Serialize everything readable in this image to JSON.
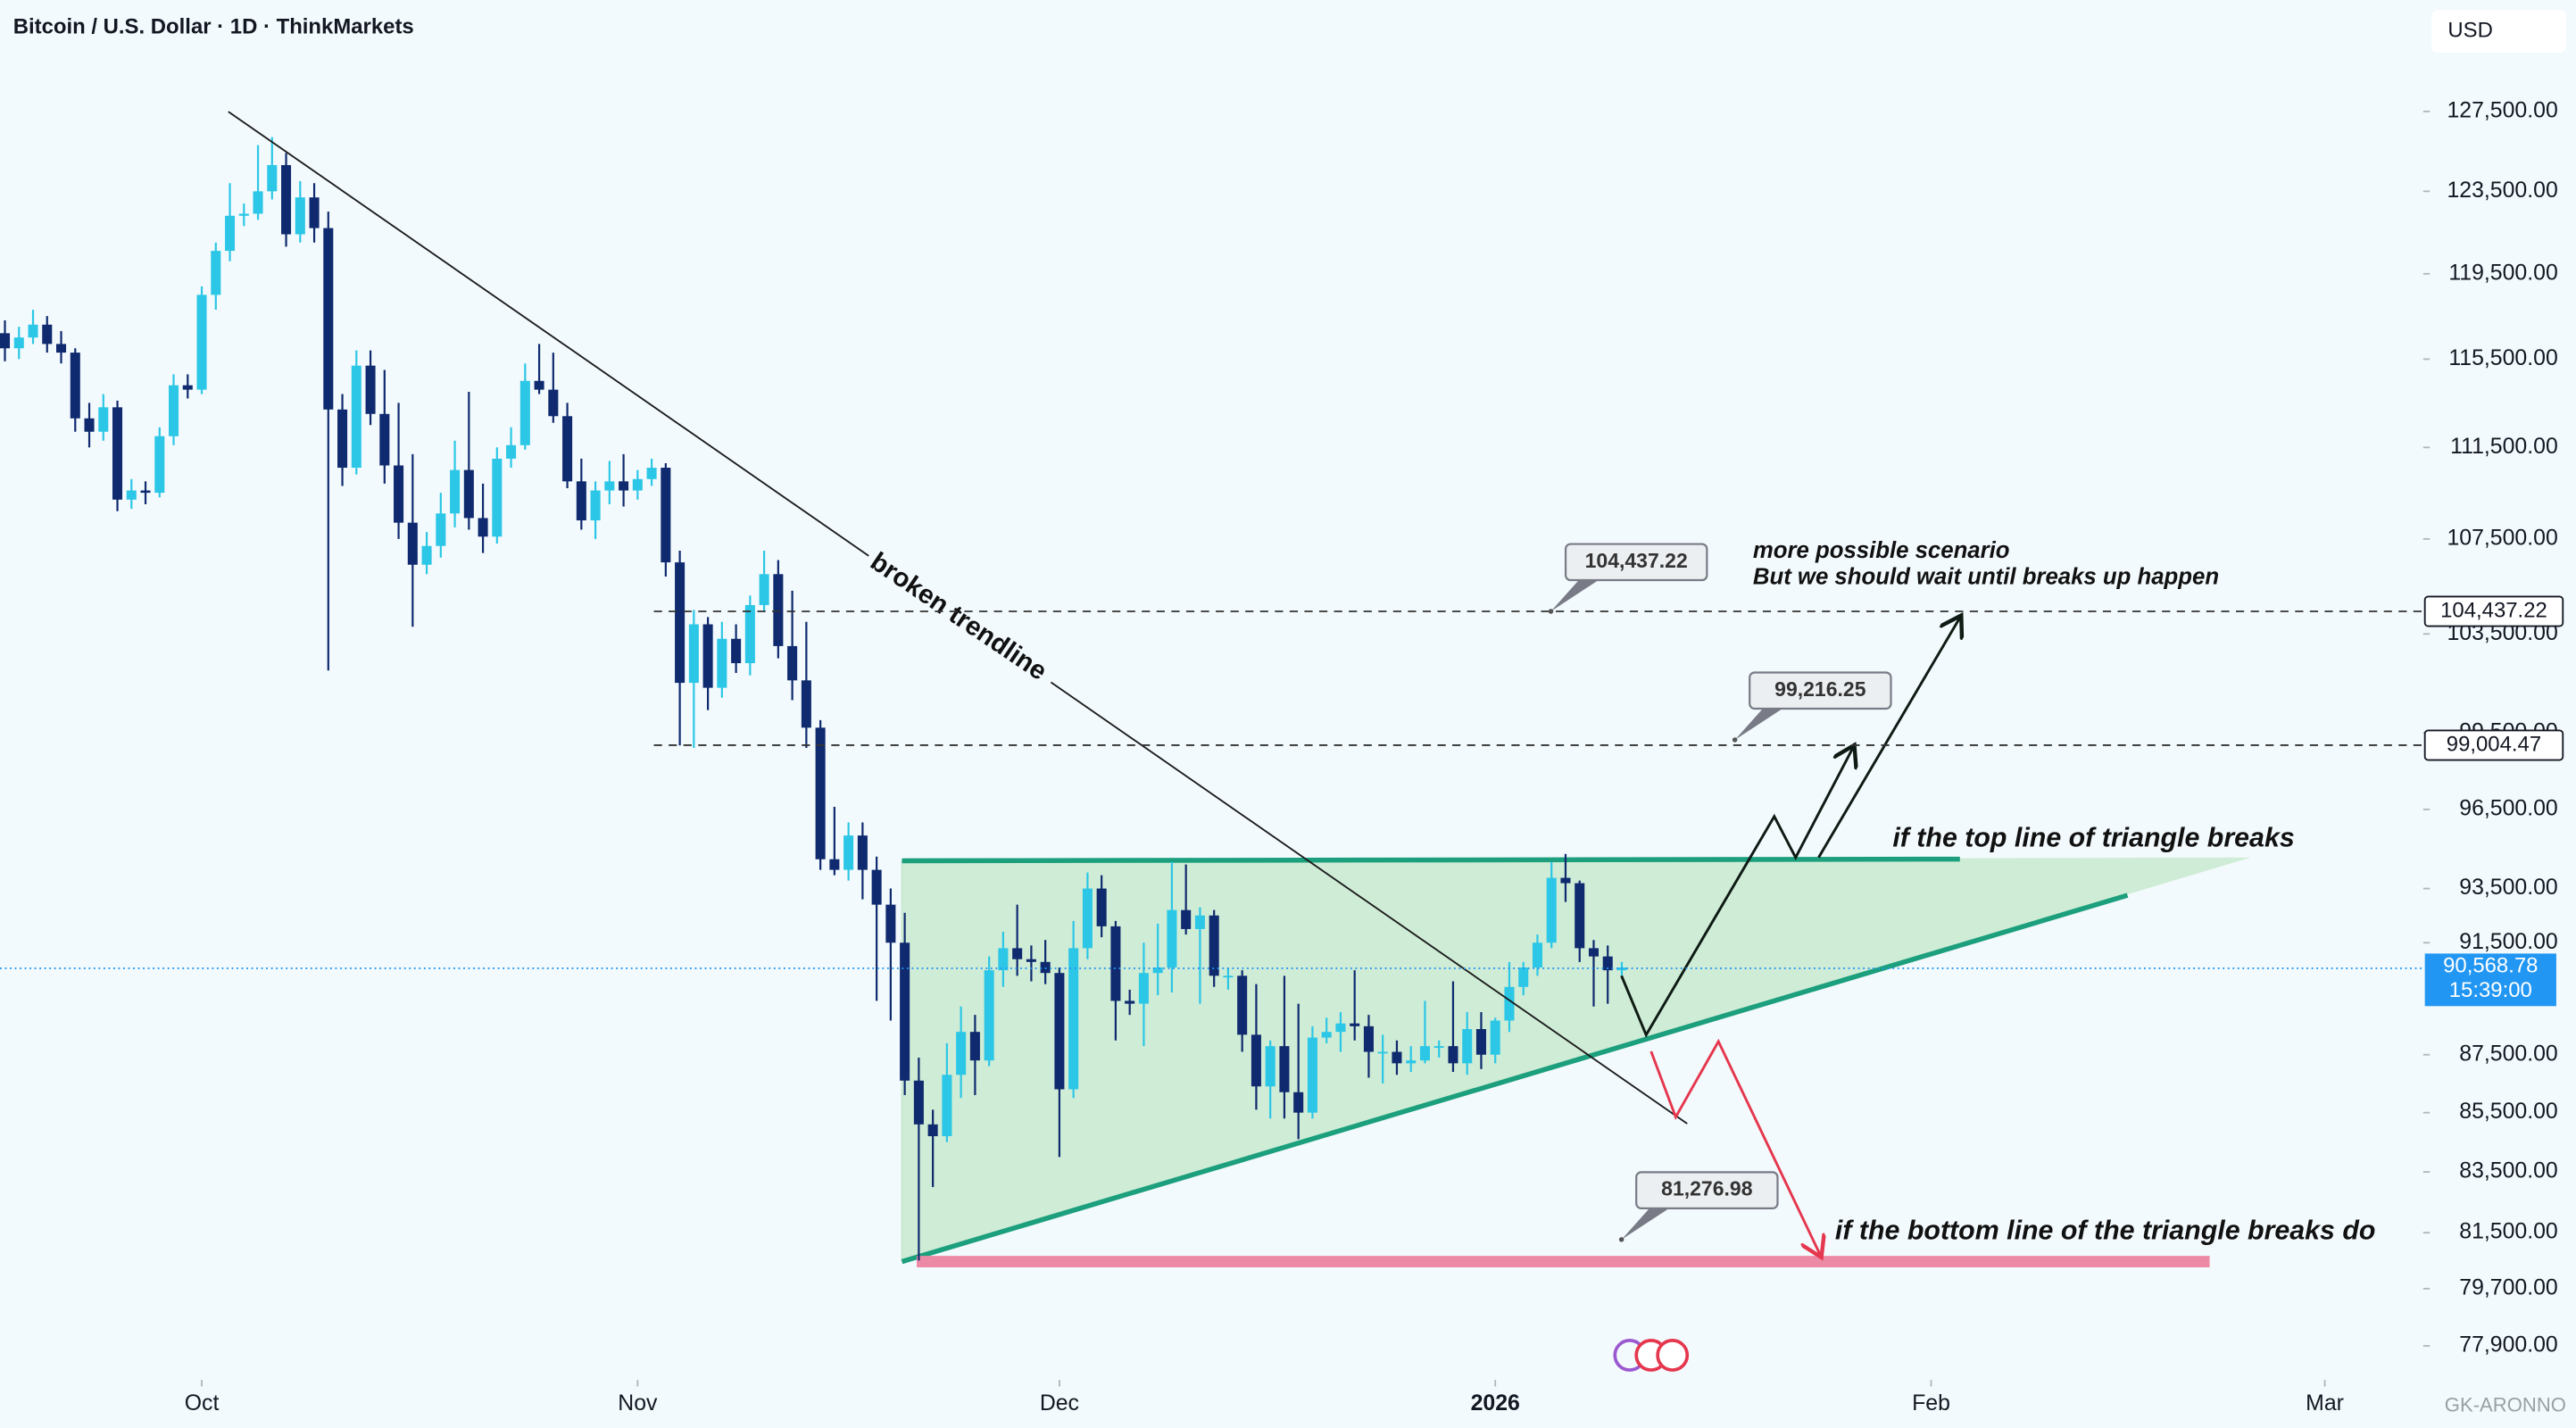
{
  "header": {
    "title": "Bitcoin / U.S. Dollar · 1D · ThinkMarkets",
    "currency": "USD",
    "watermark": "GK-ARONNO"
  },
  "chart_data": {
    "type": "candlestick",
    "up_color": "#2cc7e6",
    "down_color": "#0f2a6e",
    "log_scale": true,
    "xlim": [
      -0.35,
      172
    ],
    "ylim": [
      76850,
      133300
    ],
    "xticks": [
      {
        "value": 14,
        "label": "Oct"
      },
      {
        "value": 45,
        "label": "Nov"
      },
      {
        "value": 75,
        "label": "Dec"
      },
      {
        "value": 106,
        "label": "2026"
      },
      {
        "value": 137,
        "label": "Feb"
      },
      {
        "value": 165,
        "label": "Mar"
      }
    ],
    "yticks": [
      {
        "value": 127500,
        "label": "127,500.00"
      },
      {
        "value": 123500,
        "label": "123,500.00"
      },
      {
        "value": 119500,
        "label": "119,500.00"
      },
      {
        "value": 115500,
        "label": "115,500.00"
      },
      {
        "value": 111500,
        "label": "111,500.00"
      },
      {
        "value": 107500,
        "label": "107,500.00"
      },
      {
        "value": 103500,
        "label": "103,500.00"
      },
      {
        "value": 99500,
        "label": "99,500.00"
      },
      {
        "value": 96500,
        "label": "96,500.00"
      },
      {
        "value": 93500,
        "label": "93,500.00"
      },
      {
        "value": 91500,
        "label": "91,500.00"
      },
      {
        "value": 87500,
        "label": "87,500.00"
      },
      {
        "value": 85500,
        "label": "85,500.00"
      },
      {
        "value": 83500,
        "label": "83,500.00"
      },
      {
        "value": 81500,
        "label": "81,500.00"
      },
      {
        "value": 79700,
        "label": "79,700.00"
      },
      {
        "value": 77900,
        "label": "77,900.00"
      }
    ],
    "ohlc": [
      [
        116700,
        117300,
        115400,
        116000
      ],
      [
        116000,
        117000,
        115500,
        116500
      ],
      [
        116500,
        117800,
        116200,
        117100
      ],
      [
        117100,
        117500,
        115800,
        116200
      ],
      [
        116200,
        116800,
        115300,
        115800
      ],
      [
        115800,
        116000,
        112200,
        112800
      ],
      [
        112800,
        113500,
        111500,
        112200
      ],
      [
        112200,
        113900,
        111800,
        113300
      ],
      [
        113300,
        113600,
        108700,
        109200
      ],
      [
        109200,
        110100,
        108800,
        109600
      ],
      [
        109600,
        110000,
        109000,
        109500
      ],
      [
        109500,
        112400,
        109300,
        112000
      ],
      [
        112000,
        114800,
        111600,
        114300
      ],
      [
        114300,
        114800,
        113700,
        114100
      ],
      [
        114100,
        118900,
        113900,
        118500
      ],
      [
        118500,
        121000,
        117800,
        120600
      ],
      [
        120600,
        123900,
        120100,
        122300
      ],
      [
        122300,
        122900,
        121800,
        122400
      ],
      [
        122400,
        125800,
        122100,
        123500
      ],
      [
        123500,
        126200,
        123100,
        124800
      ],
      [
        124800,
        125400,
        120800,
        121400
      ],
      [
        121400,
        124000,
        121000,
        123200
      ],
      [
        123200,
        123900,
        121000,
        121700
      ],
      [
        121700,
        122500,
        102000,
        113200
      ],
      [
        113200,
        113900,
        109800,
        110600
      ],
      [
        110600,
        115900,
        110300,
        115200
      ],
      [
        115200,
        115900,
        112500,
        113000
      ],
      [
        113000,
        115000,
        109900,
        110700
      ],
      [
        110700,
        113500,
        107500,
        108200
      ],
      [
        108200,
        111200,
        103800,
        106400
      ],
      [
        106400,
        107800,
        106000,
        107200
      ],
      [
        107200,
        109500,
        106700,
        108600
      ],
      [
        108600,
        111800,
        108000,
        110500
      ],
      [
        110500,
        114000,
        107900,
        108400
      ],
      [
        108400,
        109900,
        106900,
        107600
      ],
      [
        107600,
        111500,
        107300,
        111000
      ],
      [
        111000,
        112400,
        110600,
        111600
      ],
      [
        111600,
        115300,
        111400,
        114500
      ],
      [
        114500,
        116200,
        113900,
        114100
      ],
      [
        114100,
        115800,
        112600,
        112900
      ],
      [
        112900,
        113500,
        109700,
        110000
      ],
      [
        110000,
        111000,
        107900,
        108300
      ],
      [
        108300,
        110000,
        107500,
        109600
      ],
      [
        109600,
        110900,
        109000,
        110000
      ],
      [
        110000,
        111200,
        108900,
        109600
      ],
      [
        109600,
        110500,
        109200,
        110100
      ],
      [
        110100,
        111000,
        109800,
        110600
      ],
      [
        110600,
        110800,
        105900,
        106500
      ],
      [
        106500,
        107000,
        99000,
        101500
      ],
      [
        101500,
        104500,
        98900,
        103900
      ],
      [
        103900,
        104200,
        100400,
        101300
      ],
      [
        101300,
        104000,
        100900,
        103300
      ],
      [
        103300,
        103900,
        101900,
        102300
      ],
      [
        102300,
        105100,
        101800,
        104700
      ],
      [
        104700,
        107000,
        104400,
        106000
      ],
      [
        106000,
        106600,
        102500,
        103000
      ],
      [
        103000,
        105300,
        100800,
        101600
      ],
      [
        101600,
        104000,
        98900,
        99700
      ],
      [
        99700,
        100000,
        94200,
        94600
      ],
      [
        94600,
        96600,
        94000,
        94200
      ],
      [
        94200,
        96000,
        93800,
        95500
      ],
      [
        95500,
        96000,
        93100,
        94200
      ],
      [
        94200,
        94700,
        89400,
        92900
      ],
      [
        92900,
        93500,
        88700,
        91500
      ],
      [
        91500,
        92600,
        86100,
        86600
      ],
      [
        86600,
        87400,
        80600,
        85100
      ],
      [
        85100,
        85600,
        83000,
        84700
      ],
      [
        84700,
        87900,
        84500,
        86800
      ],
      [
        86800,
        89200,
        86000,
        88300
      ],
      [
        88300,
        88900,
        86100,
        87300
      ],
      [
        87300,
        91000,
        87100,
        90500
      ],
      [
        90500,
        91900,
        89900,
        91300
      ],
      [
        91300,
        92900,
        90300,
        90900
      ],
      [
        90900,
        91400,
        90100,
        90800
      ],
      [
        90800,
        91600,
        90000,
        90400
      ],
      [
        90400,
        90600,
        84000,
        86300
      ],
      [
        86300,
        92300,
        86000,
        91300
      ],
      [
        91300,
        94100,
        90900,
        93500
      ],
      [
        93500,
        94000,
        91700,
        92100
      ],
      [
        92100,
        92300,
        88000,
        89400
      ],
      [
        89400,
        89800,
        88900,
        89300
      ],
      [
        89300,
        91500,
        87800,
        90400
      ],
      [
        90400,
        92200,
        89600,
        90600
      ],
      [
        90600,
        94500,
        89700,
        92700
      ],
      [
        92700,
        94400,
        91800,
        92000
      ],
      [
        92000,
        92800,
        89300,
        92500
      ],
      [
        92500,
        92700,
        89900,
        90300
      ],
      [
        90300,
        90600,
        89800,
        90300
      ],
      [
        90300,
        90500,
        87600,
        88200
      ],
      [
        88200,
        90000,
        85600,
        86400
      ],
      [
        86400,
        88000,
        85300,
        87800
      ],
      [
        87800,
        90300,
        85300,
        86200
      ],
      [
        86200,
        89300,
        84600,
        85500
      ],
      [
        85500,
        88500,
        85300,
        88100
      ],
      [
        88100,
        88800,
        87900,
        88300
      ],
      [
        88300,
        89000,
        87600,
        88600
      ],
      [
        88600,
        90500,
        88000,
        88500
      ],
      [
        88500,
        88900,
        86700,
        87600
      ],
      [
        87600,
        88200,
        86500,
        87600
      ],
      [
        87600,
        88000,
        86800,
        87200
      ],
      [
        87200,
        87800,
        86900,
        87300
      ],
      [
        87300,
        89400,
        87200,
        87800
      ],
      [
        87800,
        88000,
        87400,
        87800
      ],
      [
        87800,
        90100,
        86900,
        87200
      ],
      [
        87200,
        89000,
        86800,
        88400
      ],
      [
        88400,
        89000,
        87000,
        87500
      ],
      [
        87500,
        88800,
        87200,
        88700
      ],
      [
        88700,
        90800,
        88300,
        89900
      ],
      [
        89900,
        90800,
        89600,
        90600
      ],
      [
        90600,
        91800,
        90300,
        91500
      ],
      [
        91500,
        94500,
        91300,
        93900
      ],
      [
        93900,
        94800,
        93000,
        93700
      ],
      [
        93700,
        93800,
        90800,
        91300
      ],
      [
        91300,
        91600,
        89200,
        91000
      ],
      [
        91000,
        91400,
        89300,
        90500
      ],
      [
        90500,
        90800,
        90300,
        90600
      ]
    ],
    "levels": [
      {
        "value": 104437.22,
        "label": "104,437.22"
      },
      {
        "value": 99004.47,
        "label": "99,004.47"
      }
    ],
    "current_price": {
      "value": 90568.78,
      "label": "90,568.78",
      "countdown": "15:39:00",
      "color": "#2196f3"
    },
    "callouts": [
      {
        "value": 104437.22,
        "label": "104,437.22"
      },
      {
        "value": 99216.25,
        "label": "99,216.25"
      },
      {
        "value": 81276.98,
        "label": "81,276.98"
      }
    ],
    "annotations": {
      "trendline": "broken trendline",
      "scenario": [
        "more possible scenario",
        "But we should wait until breaks up happen"
      ],
      "top_break": "if the top line of triangle breaks",
      "bottom_break": "if the bottom line of the triangle breaks do"
    }
  }
}
